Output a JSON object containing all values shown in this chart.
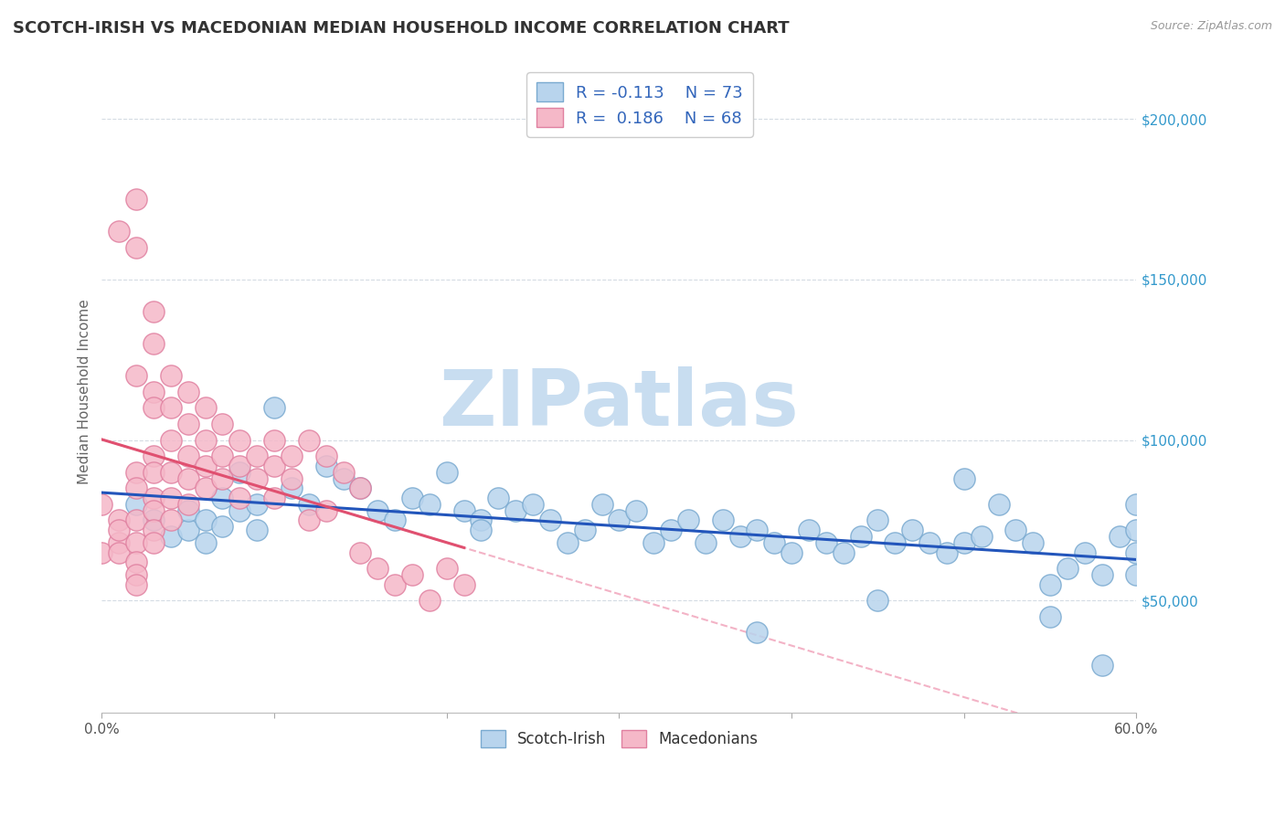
{
  "title": "SCOTCH-IRISH VS MACEDONIAN MEDIAN HOUSEHOLD INCOME CORRELATION CHART",
  "source_text": "Source: ZipAtlas.com",
  "ylabel": "Median Household Income",
  "xlim": [
    0.0,
    0.6
  ],
  "ylim": [
    15000,
    215000
  ],
  "yticks": [
    50000,
    100000,
    150000,
    200000
  ],
  "ytick_labels": [
    "$50,000",
    "$100,000",
    "$150,000",
    "$200,000"
  ],
  "xtick_positions": [
    0.0,
    0.1,
    0.2,
    0.3,
    0.4,
    0.5,
    0.6
  ],
  "xtick_labels_sparse": [
    "0.0%",
    "",
    "",
    "",
    "",
    "",
    "60.0%"
  ],
  "blue_series": {
    "name": "Scotch-Irish",
    "fill_color": "#b8d4ed",
    "edge_color": "#7aaad0",
    "R": -0.113,
    "N": 73,
    "trend_color": "#2255bb",
    "trend_style": "solid",
    "x": [
      0.02,
      0.03,
      0.04,
      0.05,
      0.05,
      0.06,
      0.06,
      0.07,
      0.07,
      0.08,
      0.08,
      0.09,
      0.09,
      0.1,
      0.11,
      0.12,
      0.13,
      0.14,
      0.15,
      0.16,
      0.17,
      0.18,
      0.19,
      0.2,
      0.21,
      0.22,
      0.22,
      0.23,
      0.24,
      0.25,
      0.26,
      0.27,
      0.28,
      0.29,
      0.3,
      0.31,
      0.32,
      0.33,
      0.34,
      0.35,
      0.36,
      0.37,
      0.38,
      0.39,
      0.4,
      0.41,
      0.42,
      0.43,
      0.44,
      0.45,
      0.46,
      0.47,
      0.48,
      0.49,
      0.5,
      0.51,
      0.52,
      0.53,
      0.54,
      0.55,
      0.56,
      0.57,
      0.58,
      0.59,
      0.6,
      0.38,
      0.45,
      0.5,
      0.55,
      0.58,
      0.6,
      0.6,
      0.6
    ],
    "y": [
      80000,
      75000,
      70000,
      72000,
      78000,
      75000,
      68000,
      82000,
      73000,
      90000,
      78000,
      80000,
      72000,
      110000,
      85000,
      80000,
      92000,
      88000,
      85000,
      78000,
      75000,
      82000,
      80000,
      90000,
      78000,
      75000,
      72000,
      82000,
      78000,
      80000,
      75000,
      68000,
      72000,
      80000,
      75000,
      78000,
      68000,
      72000,
      75000,
      68000,
      75000,
      70000,
      72000,
      68000,
      65000,
      72000,
      68000,
      65000,
      70000,
      75000,
      68000,
      72000,
      68000,
      65000,
      68000,
      70000,
      80000,
      72000,
      68000,
      55000,
      60000,
      65000,
      58000,
      70000,
      72000,
      40000,
      50000,
      88000,
      45000,
      30000,
      80000,
      58000,
      65000
    ]
  },
  "pink_series": {
    "name": "Macedonians",
    "fill_color": "#f5b8c8",
    "edge_color": "#e080a0",
    "R": 0.186,
    "N": 68,
    "trend_color": "#e05070",
    "trend_style": "solid",
    "dashed_line_color": "#f0a0b8",
    "x": [
      0.0,
      0.0,
      0.01,
      0.01,
      0.01,
      0.01,
      0.02,
      0.02,
      0.02,
      0.02,
      0.02,
      0.02,
      0.02,
      0.02,
      0.02,
      0.03,
      0.03,
      0.03,
      0.03,
      0.03,
      0.03,
      0.03,
      0.03,
      0.03,
      0.04,
      0.04,
      0.04,
      0.04,
      0.04,
      0.04,
      0.05,
      0.05,
      0.05,
      0.05,
      0.05,
      0.06,
      0.06,
      0.06,
      0.06,
      0.07,
      0.07,
      0.07,
      0.08,
      0.08,
      0.08,
      0.09,
      0.09,
      0.1,
      0.1,
      0.1,
      0.11,
      0.11,
      0.12,
      0.12,
      0.13,
      0.13,
      0.14,
      0.15,
      0.15,
      0.16,
      0.17,
      0.18,
      0.19,
      0.2,
      0.21,
      0.01,
      0.02,
      0.03
    ],
    "y": [
      80000,
      65000,
      75000,
      68000,
      72000,
      65000,
      160000,
      175000,
      120000,
      90000,
      75000,
      68000,
      62000,
      58000,
      55000,
      140000,
      130000,
      115000,
      110000,
      95000,
      90000,
      82000,
      78000,
      72000,
      120000,
      110000,
      100000,
      90000,
      82000,
      75000,
      115000,
      105000,
      95000,
      88000,
      80000,
      110000,
      100000,
      92000,
      85000,
      105000,
      95000,
      88000,
      100000,
      92000,
      82000,
      95000,
      88000,
      100000,
      92000,
      82000,
      95000,
      88000,
      100000,
      75000,
      95000,
      78000,
      90000,
      85000,
      65000,
      60000,
      55000,
      58000,
      50000,
      60000,
      55000,
      165000,
      85000,
      68000
    ]
  },
  "watermark": "ZIPatlas",
  "watermark_color": "#c8ddf0",
  "background_color": "#ffffff",
  "grid_color": "#d0d8e0",
  "title_fontsize": 13,
  "axis_label_fontsize": 11,
  "tick_fontsize": 11,
  "legend_fontsize": 13,
  "source_fontsize": 9,
  "legend_text_color": "#3366bb",
  "ytick_color": "#3399cc"
}
